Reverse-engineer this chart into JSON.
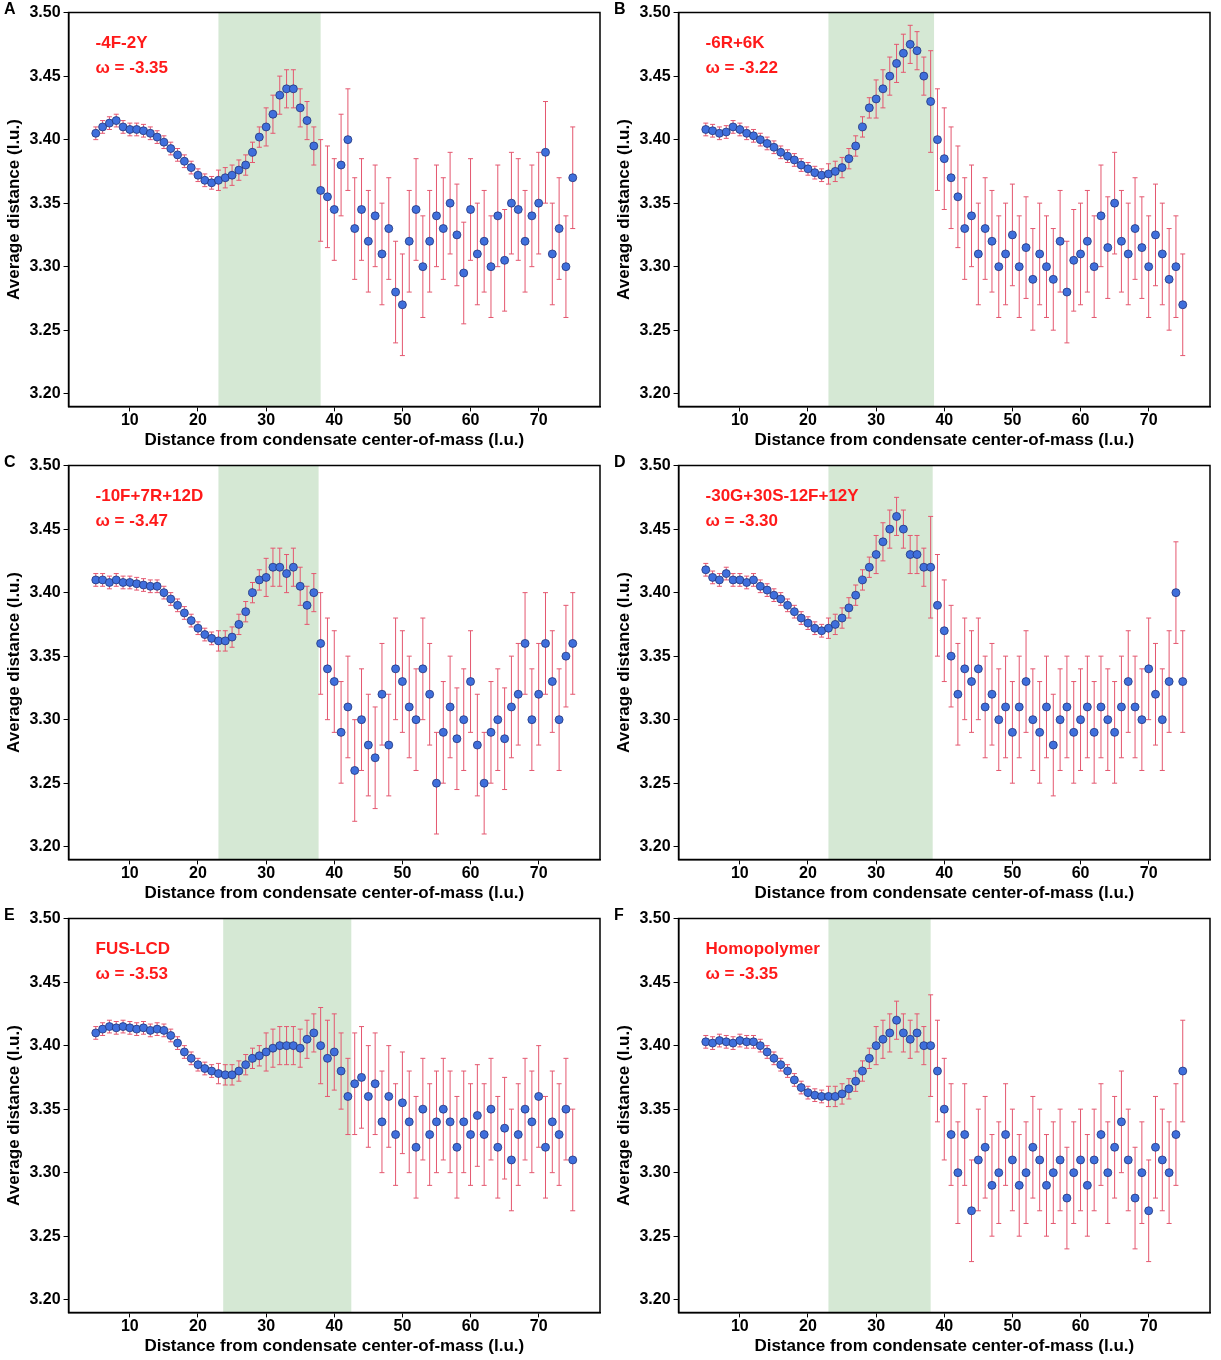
{
  "chart_data": [
    {
      "type": "scatter",
      "xlabel": "Distance from condensate center-of-mass (l.u.)",
      "ylabel": "Average distance (l.u.)",
      "annotations": [
        "A",
        "-4F-2Y",
        "ω = -3.35"
      ],
      "color": "#3f6fdc",
      "marker": "circle",
      "grid": false,
      "xlim": [
        1,
        79
      ],
      "ylim": [
        3.19,
        3.5
      ],
      "xticks": [
        10,
        20,
        30,
        40,
        50,
        60,
        70
      ],
      "yticks": [
        {
          "value": 3.2,
          "label": "3.20"
        },
        {
          "value": 3.25,
          "label": "3.25"
        },
        {
          "value": 3.3,
          "label": "3.30"
        },
        {
          "value": 3.35,
          "label": "3.35"
        },
        {
          "value": 3.4,
          "label": "3.40"
        },
        {
          "value": 3.45,
          "label": "3.45"
        },
        {
          "value": 3.5,
          "label": "3.50"
        }
      ],
      "bands": [
        {
          "axis": "x",
          "from": 23,
          "to": 38,
          "color": "#d5e8d4"
        }
      ],
      "x": [
        5,
        6,
        7,
        8,
        9,
        10,
        11,
        12,
        13,
        14,
        15,
        16,
        17,
        18,
        19,
        20,
        21,
        22,
        23,
        24,
        25,
        26,
        27,
        28,
        29,
        30,
        31,
        32,
        33,
        34,
        35,
        36,
        37,
        38,
        39,
        40,
        41,
        42,
        43,
        44,
        45,
        46,
        47,
        48,
        49,
        50,
        51,
        52,
        53,
        54,
        55,
        56,
        57,
        58,
        59,
        60,
        61,
        62,
        63,
        64,
        65,
        66,
        67,
        68,
        69,
        70,
        71,
        72,
        73,
        74,
        75
      ],
      "values": [
        3.405,
        3.41,
        3.413,
        3.415,
        3.41,
        3.408,
        3.408,
        3.407,
        3.405,
        3.402,
        3.398,
        3.393,
        3.388,
        3.383,
        3.378,
        3.372,
        3.368,
        3.366,
        3.368,
        3.37,
        3.372,
        3.376,
        3.38,
        3.39,
        3.402,
        3.41,
        3.42,
        3.435,
        3.44,
        3.44,
        3.425,
        3.415,
        3.395,
        3.36,
        3.355,
        3.345,
        3.38,
        3.4,
        3.33,
        3.345,
        3.32,
        3.34,
        3.31,
        3.33,
        3.28,
        3.27,
        3.32,
        3.345,
        3.3,
        3.32,
        3.34,
        3.33,
        3.35,
        3.325,
        3.295,
        3.345,
        3.31,
        3.32,
        3.3,
        3.34,
        3.305,
        3.35,
        3.345,
        3.32,
        3.34,
        3.35,
        3.39,
        3.31,
        3.33,
        3.3,
        3.37
      ],
      "errors": [
        0.005,
        0.005,
        0.005,
        0.005,
        0.005,
        0.005,
        0.005,
        0.005,
        0.005,
        0.005,
        0.005,
        0.005,
        0.005,
        0.005,
        0.005,
        0.005,
        0.005,
        0.005,
        0.008,
        0.008,
        0.008,
        0.008,
        0.008,
        0.008,
        0.008,
        0.015,
        0.015,
        0.015,
        0.015,
        0.015,
        0.015,
        0.015,
        0.015,
        0.04,
        0.04,
        0.04,
        0.04,
        0.04,
        0.04,
        0.04,
        0.04,
        0.04,
        0.04,
        0.04,
        0.04,
        0.04,
        0.04,
        0.04,
        0.04,
        0.04,
        0.04,
        0.04,
        0.04,
        0.04,
        0.04,
        0.04,
        0.04,
        0.04,
        0.04,
        0.04,
        0.04,
        0.04,
        0.04,
        0.04,
        0.04,
        0.04,
        0.04,
        0.04,
        0.04,
        0.04,
        0.04
      ]
    },
    {
      "type": "scatter",
      "xlabel": "Distance from condensate center-of-mass (l.u.)",
      "ylabel": "Average distance (l.u.)",
      "annotations": [
        "B",
        "-6R+6K",
        "ω = -3.22"
      ],
      "color": "#3f6fdc",
      "marker": "circle",
      "grid": false,
      "xlim": [
        1,
        79
      ],
      "ylim": [
        3.19,
        3.5
      ],
      "xticks": [
        10,
        20,
        30,
        40,
        50,
        60,
        70
      ],
      "yticks": [
        {
          "value": 3.2,
          "label": "3.20"
        },
        {
          "value": 3.25,
          "label": "3.25"
        },
        {
          "value": 3.3,
          "label": "3.30"
        },
        {
          "value": 3.35,
          "label": "3.35"
        },
        {
          "value": 3.4,
          "label": "3.40"
        },
        {
          "value": 3.45,
          "label": "3.45"
        },
        {
          "value": 3.5,
          "label": "3.50"
        }
      ],
      "bands": [
        {
          "axis": "x",
          "from": 23,
          "to": 38.5,
          "color": "#d5e8d4"
        }
      ],
      "x": [
        5,
        6,
        7,
        8,
        9,
        10,
        11,
        12,
        13,
        14,
        15,
        16,
        17,
        18,
        19,
        20,
        21,
        22,
        23,
        24,
        25,
        26,
        27,
        28,
        29,
        30,
        31,
        32,
        33,
        34,
        35,
        36,
        37,
        38,
        39,
        40,
        41,
        42,
        43,
        44,
        45,
        46,
        47,
        48,
        49,
        50,
        51,
        52,
        53,
        54,
        55,
        56,
        57,
        58,
        59,
        60,
        61,
        62,
        63,
        64,
        65,
        66,
        67,
        68,
        69,
        70,
        71,
        72,
        73,
        74,
        75
      ],
      "values": [
        3.408,
        3.407,
        3.405,
        3.406,
        3.41,
        3.408,
        3.405,
        3.403,
        3.4,
        3.397,
        3.394,
        3.39,
        3.387,
        3.384,
        3.38,
        3.377,
        3.374,
        3.372,
        3.373,
        3.375,
        3.378,
        3.385,
        3.395,
        3.41,
        3.425,
        3.432,
        3.44,
        3.45,
        3.46,
        3.468,
        3.475,
        3.47,
        3.45,
        3.43,
        3.4,
        3.385,
        3.37,
        3.355,
        3.33,
        3.34,
        3.31,
        3.33,
        3.32,
        3.3,
        3.31,
        3.325,
        3.3,
        3.315,
        3.29,
        3.31,
        3.3,
        3.29,
        3.32,
        3.28,
        3.305,
        3.31,
        3.32,
        3.3,
        3.34,
        3.315,
        3.35,
        3.32,
        3.31,
        3.33,
        3.315,
        3.3,
        3.325,
        3.31,
        3.29,
        3.3,
        3.27
      ],
      "errors": [
        0.005,
        0.005,
        0.005,
        0.005,
        0.005,
        0.005,
        0.005,
        0.005,
        0.005,
        0.005,
        0.005,
        0.005,
        0.005,
        0.005,
        0.005,
        0.005,
        0.005,
        0.005,
        0.008,
        0.008,
        0.008,
        0.008,
        0.008,
        0.008,
        0.008,
        0.015,
        0.015,
        0.015,
        0.015,
        0.015,
        0.015,
        0.015,
        0.015,
        0.04,
        0.04,
        0.04,
        0.04,
        0.04,
        0.04,
        0.04,
        0.04,
        0.04,
        0.04,
        0.04,
        0.04,
        0.04,
        0.04,
        0.04,
        0.04,
        0.04,
        0.04,
        0.04,
        0.04,
        0.04,
        0.04,
        0.04,
        0.04,
        0.04,
        0.04,
        0.04,
        0.04,
        0.04,
        0.04,
        0.04,
        0.04,
        0.04,
        0.04,
        0.04,
        0.04,
        0.04,
        0.04
      ]
    },
    {
      "type": "scatter",
      "xlabel": "Distance from condensate center-of-mass (l.u.)",
      "ylabel": "Average distance (l.u.)",
      "annotations": [
        "C",
        "-10F+7R+12D",
        "ω = -3.47"
      ],
      "color": "#3f6fdc",
      "marker": "circle",
      "grid": false,
      "xlim": [
        1,
        79
      ],
      "ylim": [
        3.19,
        3.5
      ],
      "xticks": [
        10,
        20,
        30,
        40,
        50,
        60,
        70
      ],
      "yticks": [
        {
          "value": 3.2,
          "label": "3.20"
        },
        {
          "value": 3.25,
          "label": "3.25"
        },
        {
          "value": 3.3,
          "label": "3.30"
        },
        {
          "value": 3.35,
          "label": "3.35"
        },
        {
          "value": 3.4,
          "label": "3.40"
        },
        {
          "value": 3.45,
          "label": "3.45"
        },
        {
          "value": 3.5,
          "label": "3.50"
        }
      ],
      "bands": [
        {
          "axis": "x",
          "from": 23,
          "to": 37.7,
          "color": "#d5e8d4"
        }
      ],
      "x": [
        5,
        6,
        7,
        8,
        9,
        10,
        11,
        12,
        13,
        14,
        15,
        16,
        17,
        18,
        19,
        20,
        21,
        22,
        23,
        24,
        25,
        26,
        27,
        28,
        29,
        30,
        31,
        32,
        33,
        34,
        35,
        36,
        37,
        38,
        39,
        40,
        41,
        42,
        43,
        44,
        45,
        46,
        47,
        48,
        49,
        50,
        51,
        52,
        53,
        54,
        55,
        56,
        57,
        58,
        59,
        60,
        61,
        62,
        63,
        64,
        65,
        66,
        67,
        68,
        69,
        70,
        71,
        72,
        73,
        74,
        75
      ],
      "values": [
        3.41,
        3.41,
        3.408,
        3.41,
        3.408,
        3.408,
        3.407,
        3.406,
        3.405,
        3.405,
        3.4,
        3.395,
        3.39,
        3.384,
        3.378,
        3.372,
        3.367,
        3.364,
        3.362,
        3.362,
        3.365,
        3.375,
        3.385,
        3.4,
        3.41,
        3.412,
        3.42,
        3.42,
        3.415,
        3.42,
        3.405,
        3.39,
        3.4,
        3.36,
        3.34,
        3.33,
        3.29,
        3.31,
        3.26,
        3.3,
        3.28,
        3.27,
        3.32,
        3.28,
        3.34,
        3.33,
        3.31,
        3.3,
        3.34,
        3.32,
        3.25,
        3.29,
        3.31,
        3.285,
        3.3,
        3.33,
        3.28,
        3.25,
        3.29,
        3.3,
        3.285,
        3.31,
        3.32,
        3.36,
        3.3,
        3.32,
        3.36,
        3.33,
        3.3,
        3.35,
        3.36
      ],
      "errors": [
        0.005,
        0.005,
        0.005,
        0.005,
        0.005,
        0.005,
        0.005,
        0.005,
        0.005,
        0.005,
        0.005,
        0.005,
        0.005,
        0.005,
        0.005,
        0.005,
        0.005,
        0.005,
        0.008,
        0.008,
        0.008,
        0.008,
        0.008,
        0.008,
        0.008,
        0.015,
        0.015,
        0.015,
        0.015,
        0.015,
        0.015,
        0.015,
        0.015,
        0.04,
        0.04,
        0.04,
        0.04,
        0.04,
        0.04,
        0.04,
        0.04,
        0.04,
        0.04,
        0.04,
        0.04,
        0.04,
        0.04,
        0.04,
        0.04,
        0.04,
        0.04,
        0.04,
        0.04,
        0.04,
        0.04,
        0.04,
        0.04,
        0.04,
        0.04,
        0.04,
        0.04,
        0.04,
        0.04,
        0.04,
        0.04,
        0.04,
        0.04,
        0.04,
        0.04,
        0.04,
        0.04
      ]
    },
    {
      "type": "scatter",
      "xlabel": "Distance from condensate center-of-mass (l.u.)",
      "ylabel": "Average distance (l.u.)",
      "annotations": [
        "D",
        "-30G+30S-12F+12Y",
        "ω = -3.30"
      ],
      "color": "#3f6fdc",
      "marker": "circle",
      "grid": false,
      "xlim": [
        1,
        79
      ],
      "ylim": [
        3.19,
        3.5
      ],
      "xticks": [
        10,
        20,
        30,
        40,
        50,
        60,
        70
      ],
      "yticks": [
        {
          "value": 3.2,
          "label": "3.20"
        },
        {
          "value": 3.25,
          "label": "3.25"
        },
        {
          "value": 3.3,
          "label": "3.30"
        },
        {
          "value": 3.35,
          "label": "3.35"
        },
        {
          "value": 3.4,
          "label": "3.40"
        },
        {
          "value": 3.45,
          "label": "3.45"
        },
        {
          "value": 3.5,
          "label": "3.50"
        }
      ],
      "bands": [
        {
          "axis": "x",
          "from": 23,
          "to": 38.3,
          "color": "#d5e8d4"
        }
      ],
      "x": [
        5,
        6,
        7,
        8,
        9,
        10,
        11,
        12,
        13,
        14,
        15,
        16,
        17,
        18,
        19,
        20,
        21,
        22,
        23,
        24,
        25,
        26,
        27,
        28,
        29,
        30,
        31,
        32,
        33,
        34,
        35,
        36,
        37,
        38,
        39,
        40,
        41,
        42,
        43,
        44,
        45,
        46,
        47,
        48,
        49,
        50,
        51,
        52,
        53,
        54,
        55,
        56,
        57,
        58,
        59,
        60,
        61,
        62,
        63,
        64,
        65,
        66,
        67,
        68,
        69,
        70,
        71,
        72,
        73,
        74,
        75
      ],
      "values": [
        3.418,
        3.412,
        3.41,
        3.415,
        3.41,
        3.41,
        3.408,
        3.41,
        3.405,
        3.402,
        3.398,
        3.395,
        3.39,
        3.385,
        3.38,
        3.376,
        3.372,
        3.37,
        3.372,
        3.375,
        3.38,
        3.388,
        3.398,
        3.41,
        3.42,
        3.43,
        3.44,
        3.45,
        3.46,
        3.45,
        3.43,
        3.43,
        3.42,
        3.42,
        3.39,
        3.37,
        3.35,
        3.32,
        3.34,
        3.33,
        3.34,
        3.31,
        3.32,
        3.3,
        3.31,
        3.29,
        3.31,
        3.33,
        3.3,
        3.29,
        3.31,
        3.28,
        3.3,
        3.31,
        3.29,
        3.3,
        3.31,
        3.29,
        3.31,
        3.3,
        3.29,
        3.31,
        3.33,
        3.31,
        3.3,
        3.34,
        3.32,
        3.3,
        3.33,
        3.4,
        3.33
      ],
      "errors": [
        0.005,
        0.005,
        0.005,
        0.005,
        0.005,
        0.005,
        0.005,
        0.005,
        0.005,
        0.005,
        0.005,
        0.005,
        0.005,
        0.005,
        0.005,
        0.005,
        0.005,
        0.005,
        0.008,
        0.008,
        0.008,
        0.008,
        0.008,
        0.008,
        0.008,
        0.015,
        0.015,
        0.015,
        0.015,
        0.015,
        0.015,
        0.015,
        0.015,
        0.04,
        0.04,
        0.04,
        0.04,
        0.04,
        0.04,
        0.04,
        0.04,
        0.04,
        0.04,
        0.04,
        0.04,
        0.04,
        0.04,
        0.04,
        0.04,
        0.04,
        0.04,
        0.04,
        0.04,
        0.04,
        0.04,
        0.04,
        0.04,
        0.04,
        0.04,
        0.04,
        0.04,
        0.04,
        0.04,
        0.04,
        0.04,
        0.04,
        0.04,
        0.04,
        0.04,
        0.04,
        0.04
      ]
    },
    {
      "type": "scatter",
      "xlabel": "Distance from condensate center-of-mass (l.u.)",
      "ylabel": "Average distance (l.u.)",
      "annotations": [
        "E",
        "FUS-LCD",
        "ω = -3.53"
      ],
      "color": "#3f6fdc",
      "marker": "circle",
      "grid": false,
      "xlim": [
        1,
        79
      ],
      "ylim": [
        3.19,
        3.5
      ],
      "xticks": [
        10,
        20,
        30,
        40,
        50,
        60,
        70
      ],
      "yticks": [
        {
          "value": 3.2,
          "label": "3.20"
        },
        {
          "value": 3.25,
          "label": "3.25"
        },
        {
          "value": 3.3,
          "label": "3.30"
        },
        {
          "value": 3.35,
          "label": "3.35"
        },
        {
          "value": 3.4,
          "label": "3.40"
        },
        {
          "value": 3.45,
          "label": "3.45"
        },
        {
          "value": 3.5,
          "label": "3.50"
        }
      ],
      "bands": [
        {
          "axis": "x",
          "from": 23.7,
          "to": 42.5,
          "color": "#d5e8d4"
        }
      ],
      "x": [
        5,
        6,
        7,
        8,
        9,
        10,
        11,
        12,
        13,
        14,
        15,
        16,
        17,
        18,
        19,
        20,
        21,
        22,
        23,
        24,
        25,
        26,
        27,
        28,
        29,
        30,
        31,
        32,
        33,
        34,
        35,
        36,
        37,
        38,
        39,
        40,
        41,
        42,
        43,
        44,
        45,
        46,
        47,
        48,
        49,
        50,
        51,
        52,
        53,
        54,
        55,
        56,
        57,
        58,
        59,
        60,
        61,
        62,
        63,
        64,
        65,
        66,
        67,
        68,
        69,
        70,
        71,
        72,
        73,
        74,
        75
      ],
      "values": [
        3.41,
        3.413,
        3.415,
        3.414,
        3.415,
        3.414,
        3.413,
        3.414,
        3.412,
        3.413,
        3.412,
        3.408,
        3.402,
        3.395,
        3.39,
        3.385,
        3.382,
        3.38,
        3.378,
        3.377,
        3.377,
        3.38,
        3.385,
        3.39,
        3.392,
        3.395,
        3.398,
        3.4,
        3.4,
        3.4,
        3.398,
        3.405,
        3.41,
        3.4,
        3.39,
        3.395,
        3.38,
        3.36,
        3.37,
        3.375,
        3.36,
        3.37,
        3.34,
        3.36,
        3.33,
        3.355,
        3.34,
        3.32,
        3.35,
        3.33,
        3.34,
        3.35,
        3.34,
        3.32,
        3.34,
        3.33,
        3.345,
        3.33,
        3.35,
        3.32,
        3.335,
        3.31,
        3.33,
        3.35,
        3.34,
        3.36,
        3.32,
        3.34,
        3.33,
        3.35,
        3.31
      ],
      "errors": [
        0.005,
        0.005,
        0.005,
        0.005,
        0.005,
        0.005,
        0.005,
        0.005,
        0.005,
        0.005,
        0.005,
        0.005,
        0.005,
        0.005,
        0.005,
        0.005,
        0.005,
        0.005,
        0.008,
        0.008,
        0.008,
        0.008,
        0.008,
        0.008,
        0.008,
        0.015,
        0.015,
        0.015,
        0.015,
        0.015,
        0.015,
        0.015,
        0.015,
        0.03,
        0.03,
        0.03,
        0.03,
        0.03,
        0.04,
        0.04,
        0.04,
        0.04,
        0.04,
        0.04,
        0.04,
        0.04,
        0.04,
        0.04,
        0.04,
        0.04,
        0.04,
        0.04,
        0.04,
        0.04,
        0.04,
        0.04,
        0.04,
        0.04,
        0.04,
        0.04,
        0.04,
        0.04,
        0.04,
        0.04,
        0.04,
        0.04,
        0.04,
        0.04,
        0.04,
        0.04,
        0.04
      ]
    },
    {
      "type": "scatter",
      "xlabel": "Distance from condensate center-of-mass (l.u.)",
      "ylabel": "Average distance (l.u.)",
      "annotations": [
        "F",
        "Homopolymer",
        "ω = -3.35"
      ],
      "color": "#3f6fdc",
      "marker": "circle",
      "grid": false,
      "xlim": [
        1,
        79
      ],
      "ylim": [
        3.19,
        3.5
      ],
      "xticks": [
        10,
        20,
        30,
        40,
        50,
        60,
        70
      ],
      "yticks": [
        {
          "value": 3.2,
          "label": "3.20"
        },
        {
          "value": 3.25,
          "label": "3.25"
        },
        {
          "value": 3.3,
          "label": "3.30"
        },
        {
          "value": 3.35,
          "label": "3.35"
        },
        {
          "value": 3.4,
          "label": "3.40"
        },
        {
          "value": 3.45,
          "label": "3.45"
        },
        {
          "value": 3.5,
          "label": "3.50"
        }
      ],
      "bands": [
        {
          "axis": "x",
          "from": 23,
          "to": 38,
          "color": "#d5e8d4"
        }
      ],
      "x": [
        5,
        6,
        7,
        8,
        9,
        10,
        11,
        12,
        13,
        14,
        15,
        16,
        17,
        18,
        19,
        20,
        21,
        22,
        23,
        24,
        25,
        26,
        27,
        28,
        29,
        30,
        31,
        32,
        33,
        34,
        35,
        36,
        37,
        38,
        39,
        40,
        41,
        42,
        43,
        44,
        45,
        46,
        47,
        48,
        49,
        50,
        51,
        52,
        53,
        54,
        55,
        56,
        57,
        58,
        59,
        60,
        61,
        62,
        63,
        64,
        65,
        66,
        67,
        68,
        69,
        70,
        71,
        72,
        73,
        74,
        75
      ],
      "values": [
        3.403,
        3.402,
        3.404,
        3.403,
        3.402,
        3.404,
        3.403,
        3.403,
        3.4,
        3.395,
        3.39,
        3.385,
        3.38,
        3.373,
        3.367,
        3.363,
        3.361,
        3.36,
        3.36,
        3.36,
        3.362,
        3.366,
        3.372,
        3.38,
        3.39,
        3.4,
        3.405,
        3.41,
        3.42,
        3.41,
        3.405,
        3.41,
        3.4,
        3.4,
        3.38,
        3.35,
        3.33,
        3.3,
        3.33,
        3.27,
        3.31,
        3.32,
        3.29,
        3.3,
        3.33,
        3.31,
        3.29,
        3.3,
        3.32,
        3.31,
        3.29,
        3.3,
        3.31,
        3.28,
        3.3,
        3.31,
        3.29,
        3.31,
        3.33,
        3.3,
        3.32,
        3.34,
        3.31,
        3.28,
        3.3,
        3.27,
        3.32,
        3.31,
        3.3,
        3.33,
        3.38
      ],
      "errors": [
        0.005,
        0.005,
        0.005,
        0.005,
        0.005,
        0.005,
        0.005,
        0.005,
        0.005,
        0.005,
        0.005,
        0.005,
        0.005,
        0.005,
        0.005,
        0.005,
        0.005,
        0.005,
        0.008,
        0.008,
        0.008,
        0.008,
        0.008,
        0.008,
        0.008,
        0.015,
        0.015,
        0.015,
        0.015,
        0.015,
        0.015,
        0.015,
        0.015,
        0.04,
        0.04,
        0.04,
        0.04,
        0.04,
        0.04,
        0.04,
        0.04,
        0.04,
        0.04,
        0.04,
        0.04,
        0.04,
        0.04,
        0.04,
        0.04,
        0.04,
        0.04,
        0.04,
        0.04,
        0.04,
        0.04,
        0.04,
        0.04,
        0.04,
        0.04,
        0.04,
        0.04,
        0.04,
        0.04,
        0.04,
        0.04,
        0.04,
        0.04,
        0.04,
        0.04,
        0.04,
        0.04
      ]
    }
  ]
}
